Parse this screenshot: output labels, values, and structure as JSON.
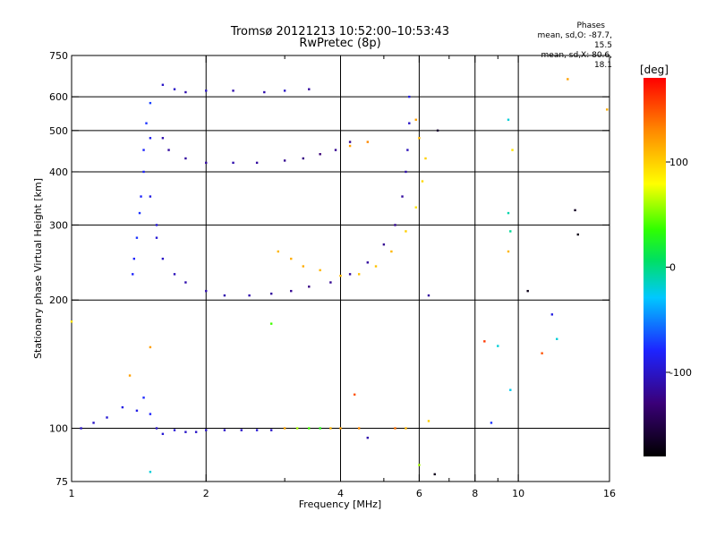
{
  "header": {
    "title": "Tromsø 20121213 10:52:00–10:53:43",
    "subtitle": "RwPretec (8p)"
  },
  "stats": {
    "heading": "Phases",
    "o_line": "mean, sd,O: -87.7, 15.5",
    "x_line": "mean, sd,X:  80.6, 18.1"
  },
  "chart_data": {
    "type": "scatter",
    "title": "Tromsø 20121213 10:52:00–10:53:43",
    "subtitle": "RwPretec (8p)",
    "xlabel": "Frequency [MHz]",
    "ylabel": "Stationary phase Virtual Height [km]",
    "x_scale": "log",
    "y_scale": "log",
    "xlim": [
      1,
      16
    ],
    "ylim": [
      75,
      750
    ],
    "x_ticks": [
      1,
      2,
      4,
      6,
      8,
      10,
      16
    ],
    "x_tick_labels": [
      "1",
      "2",
      "4",
      "6",
      "8",
      "10",
      "16"
    ],
    "x_minor_ticks": [
      3,
      5,
      7,
      9
    ],
    "y_ticks": [
      75,
      100,
      200,
      300,
      400,
      500,
      600,
      750
    ],
    "y_tick_labels": [
      "75",
      "100",
      "200",
      "300",
      "400",
      "500",
      "600",
      "750"
    ],
    "x_gridlines": [
      2,
      4,
      6,
      8,
      10
    ],
    "y_gridlines": [
      100,
      200,
      300,
      400,
      500,
      600
    ],
    "grid": true,
    "colorbar": {
      "label": "[deg]",
      "range": [
        -180,
        180
      ],
      "ticks": [
        100,
        0,
        -100
      ],
      "tick_labels": [
        "100",
        "0",
        "-100"
      ]
    },
    "series": [
      {
        "values": [
          [
            1.05,
            100,
            -100
          ],
          [
            1.12,
            103,
            -100
          ],
          [
            1.2,
            106,
            -95
          ],
          [
            1.3,
            112,
            -90
          ],
          [
            1.4,
            110,
            -88
          ],
          [
            1.45,
            118,
            -78
          ],
          [
            1.5,
            108,
            -80
          ],
          [
            1.55,
            100,
            -100
          ],
          [
            1.6,
            97,
            -95
          ],
          [
            1.7,
            99,
            -95
          ],
          [
            1.8,
            98,
            -100
          ],
          [
            1.9,
            98,
            -100
          ],
          [
            2.0,
            99,
            -100
          ],
          [
            2.2,
            99,
            -100
          ],
          [
            2.4,
            99,
            -100
          ],
          [
            2.6,
            99,
            -95
          ],
          [
            2.8,
            99,
            -100
          ],
          [
            3.0,
            100,
            120
          ],
          [
            3.2,
            100,
            60
          ],
          [
            3.4,
            100,
            40
          ],
          [
            3.6,
            100,
            30
          ],
          [
            3.8,
            100,
            110
          ],
          [
            4.0,
            100,
            120
          ],
          [
            4.4,
            100,
            130
          ],
          [
            5.3,
            100,
            140
          ],
          [
            5.6,
            100,
            110
          ]
        ]
      },
      {
        "values": [
          [
            1.6,
            640,
            -100
          ],
          [
            1.7,
            625,
            -100
          ],
          [
            1.8,
            615,
            -110
          ],
          [
            2.0,
            620,
            -100
          ],
          [
            2.3,
            620,
            -110
          ],
          [
            2.7,
            615,
            -110
          ],
          [
            3.0,
            620,
            -100
          ],
          [
            3.4,
            625,
            -115
          ]
        ]
      },
      {
        "values": [
          [
            1.5,
            580,
            -70
          ],
          [
            1.47,
            520,
            -75
          ],
          [
            1.45,
            450,
            -80
          ],
          [
            1.45,
            400,
            -80
          ],
          [
            1.43,
            350,
            -80
          ],
          [
            1.42,
            320,
            -75
          ],
          [
            1.4,
            280,
            -75
          ],
          [
            1.38,
            250,
            -80
          ],
          [
            1.37,
            230,
            -80
          ],
          [
            1.5,
            480,
            -85
          ],
          [
            1.5,
            350,
            -90
          ],
          [
            1.55,
            300,
            -95
          ]
        ]
      },
      {
        "values": [
          [
            1.6,
            480,
            -110
          ],
          [
            1.65,
            450,
            -115
          ],
          [
            1.8,
            430,
            -115
          ],
          [
            2.0,
            420,
            -115
          ],
          [
            2.3,
            420,
            -110
          ],
          [
            2.6,
            420,
            -115
          ],
          [
            3.0,
            425,
            -120
          ],
          [
            3.3,
            430,
            -125
          ],
          [
            3.6,
            440,
            -130
          ],
          [
            3.9,
            450,
            -120
          ],
          [
            4.2,
            470,
            -120
          ]
        ]
      },
      {
        "values": [
          [
            1.55,
            280,
            -95
          ],
          [
            1.6,
            250,
            -100
          ],
          [
            1.7,
            230,
            -105
          ],
          [
            1.8,
            220,
            -110
          ],
          [
            2.0,
            210,
            -110
          ],
          [
            2.2,
            205,
            -110
          ],
          [
            2.5,
            205,
            -110
          ],
          [
            2.8,
            207,
            -115
          ],
          [
            3.1,
            210,
            -120
          ],
          [
            3.4,
            215,
            -125
          ],
          [
            3.8,
            220,
            -120
          ],
          [
            4.2,
            230,
            -115
          ],
          [
            4.6,
            245,
            -115
          ],
          [
            5.0,
            270,
            -120
          ],
          [
            5.3,
            300,
            -120
          ],
          [
            5.5,
            350,
            -115
          ],
          [
            5.6,
            400,
            -110
          ],
          [
            5.65,
            450,
            -105
          ],
          [
            5.7,
            520,
            -100
          ],
          [
            5.7,
            600,
            -90
          ]
        ]
      },
      {
        "values": [
          [
            2.9,
            260,
            110
          ],
          [
            3.1,
            250,
            115
          ],
          [
            3.3,
            240,
            115
          ],
          [
            3.6,
            235,
            110
          ],
          [
            4.0,
            228,
            110
          ],
          [
            4.4,
            230,
            105
          ],
          [
            4.8,
            240,
            105
          ],
          [
            5.2,
            260,
            110
          ],
          [
            5.6,
            290,
            100
          ],
          [
            5.9,
            330,
            90
          ],
          [
            6.1,
            380,
            95
          ],
          [
            6.2,
            430,
            100
          ],
          [
            6.0,
            480,
            110
          ],
          [
            5.9,
            530,
            120
          ],
          [
            4.2,
            460,
            120
          ],
          [
            4.6,
            470,
            130
          ]
        ]
      },
      {
        "values": [
          [
            6.6,
            500,
            -160
          ],
          [
            6.3,
            205,
            -115
          ],
          [
            9.5,
            530,
            -20
          ],
          [
            9.5,
            320,
            -10
          ],
          [
            9.7,
            450,
            90
          ],
          [
            9.6,
            290,
            -5
          ],
          [
            9.5,
            260,
            110
          ],
          [
            10.5,
            210,
            -170
          ],
          [
            13.4,
            325,
            -165
          ],
          [
            13.6,
            285,
            -170
          ],
          [
            12.9,
            660,
            120
          ],
          [
            15.8,
            560,
            115
          ],
          [
            11.9,
            185,
            -90
          ],
          [
            12.2,
            162,
            -20
          ],
          [
            8.4,
            160,
            160
          ],
          [
            9.0,
            156,
            -20
          ],
          [
            9.6,
            123,
            -25
          ],
          [
            11.3,
            150,
            150
          ],
          [
            8.7,
            103,
            -75
          ],
          [
            6.3,
            104,
            100
          ],
          [
            6.0,
            82,
            60
          ],
          [
            6.5,
            78,
            -170
          ],
          [
            4.3,
            120,
            150
          ],
          [
            4.6,
            95,
            -110
          ],
          [
            2.8,
            176,
            40
          ],
          [
            1.0,
            178,
            90
          ],
          [
            1.5,
            155,
            120
          ],
          [
            1.35,
            133,
            120
          ],
          [
            1.5,
            79,
            -20
          ]
        ]
      }
    ]
  }
}
